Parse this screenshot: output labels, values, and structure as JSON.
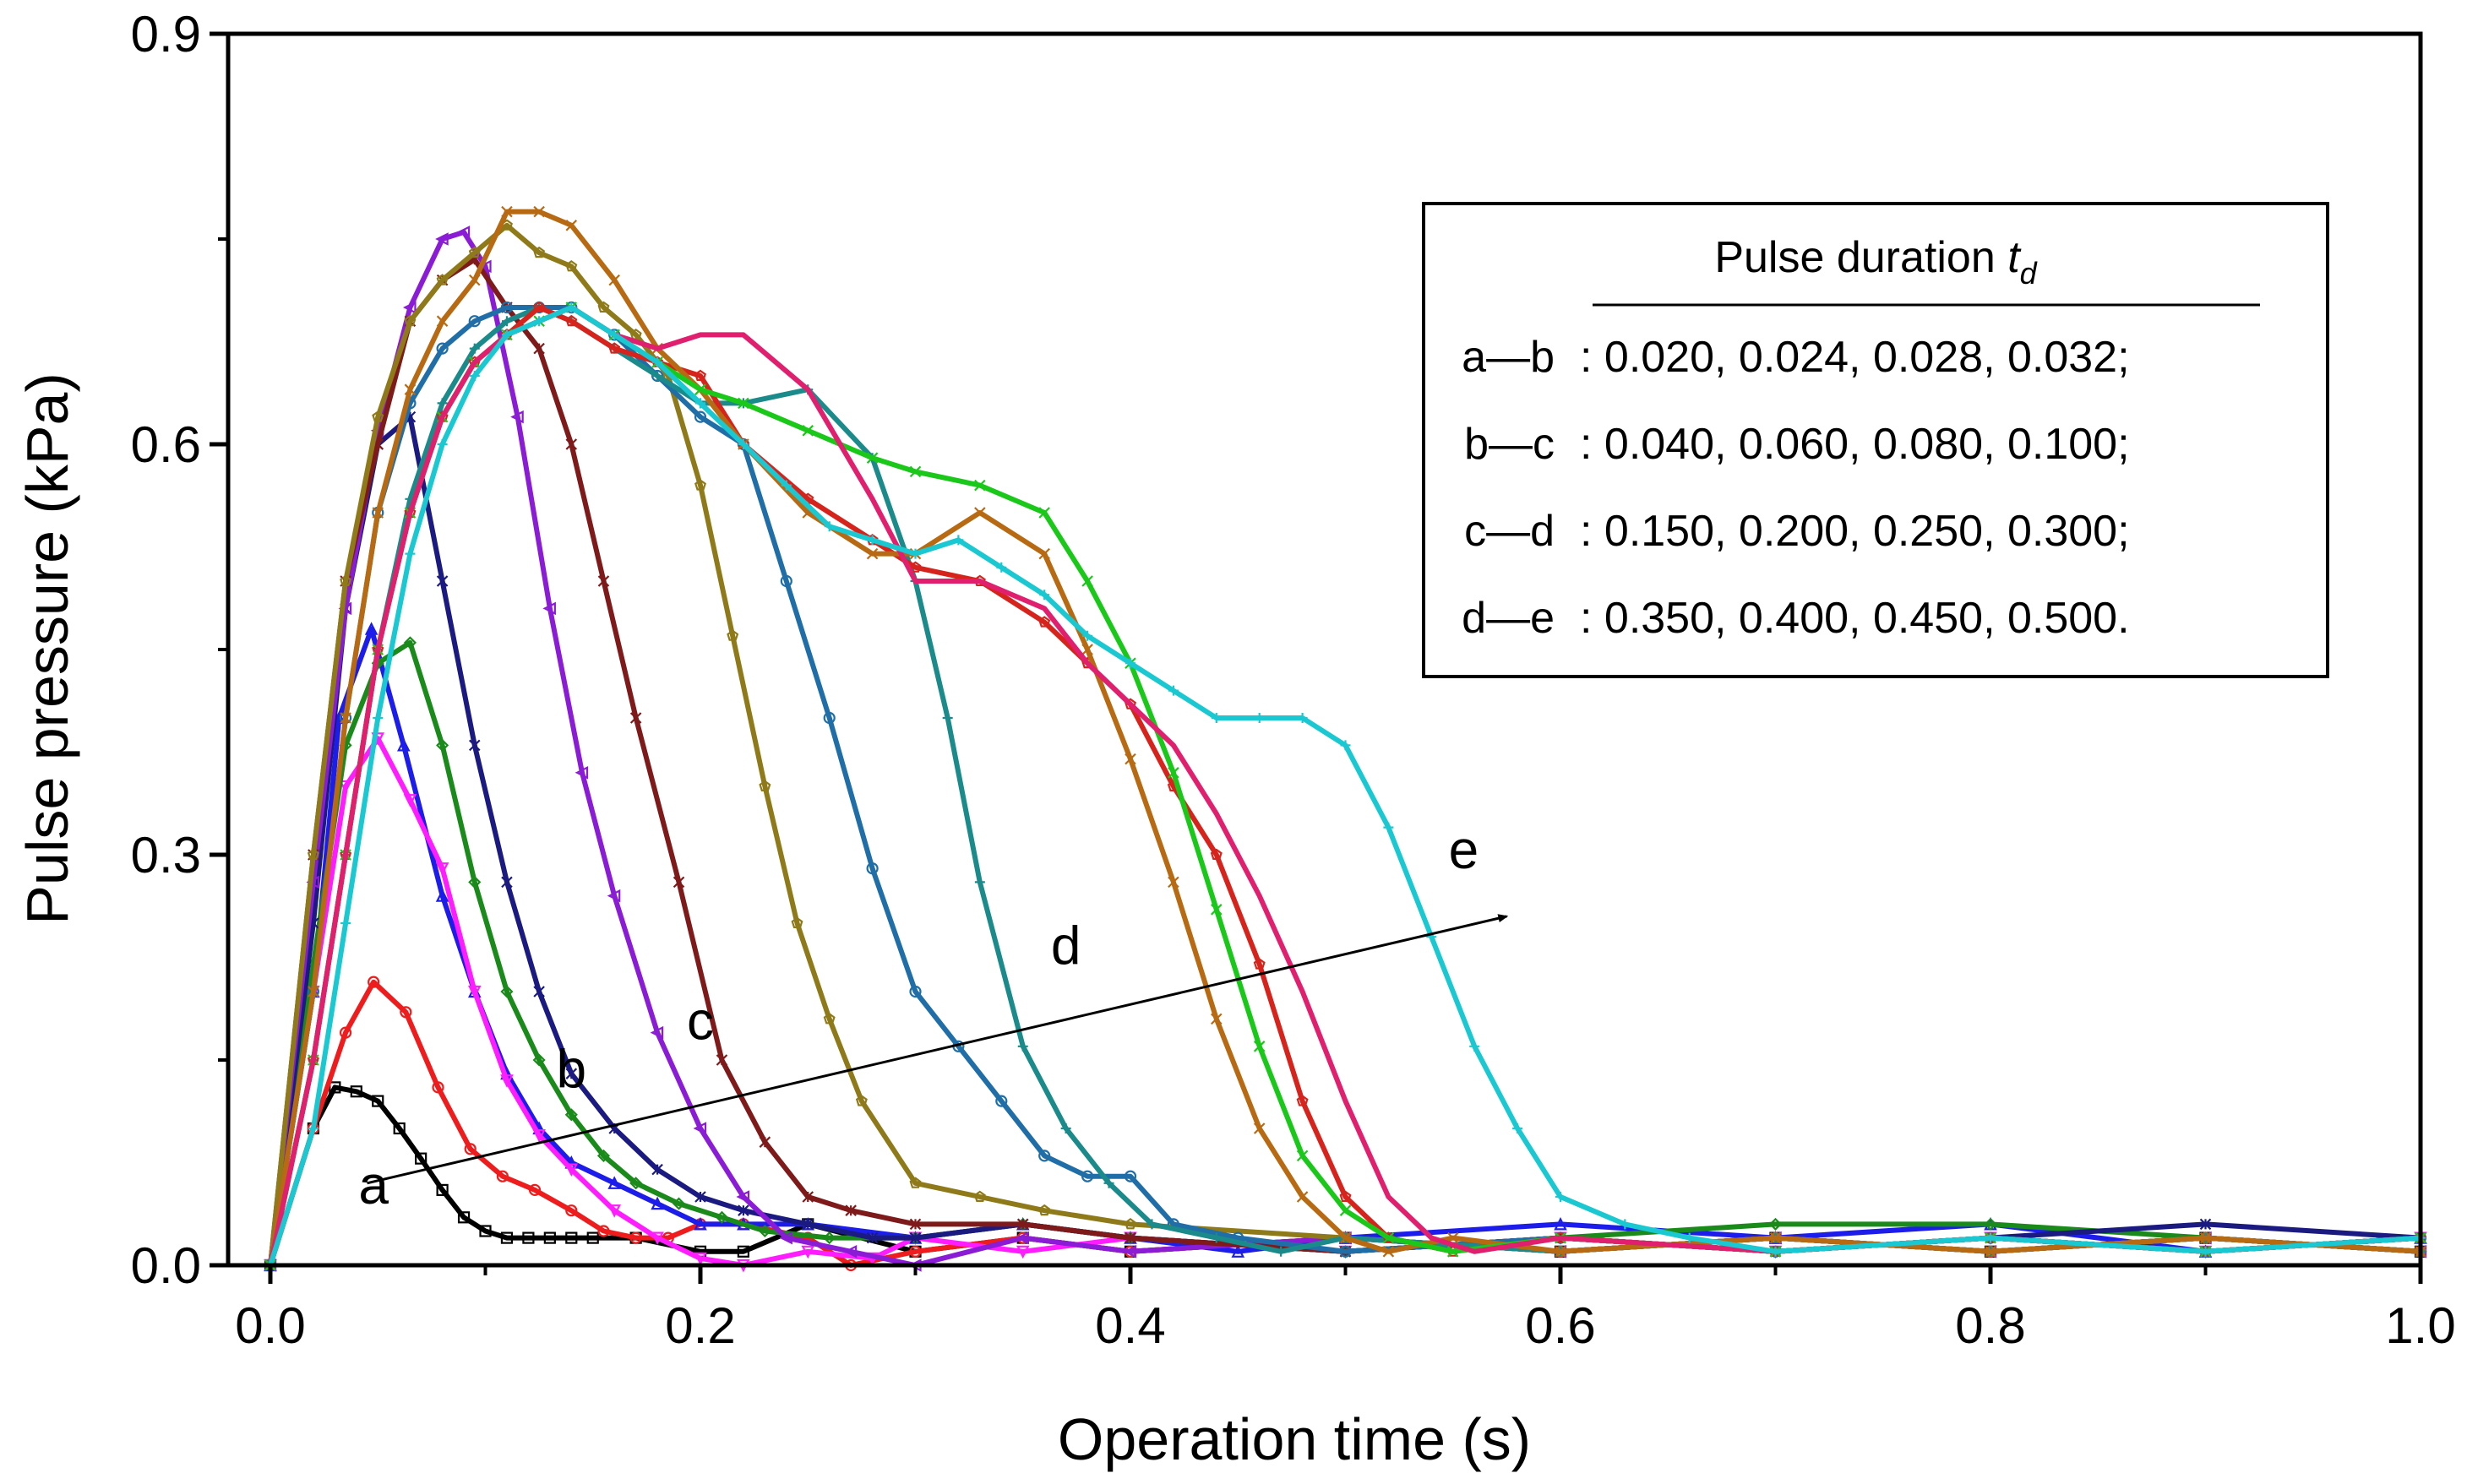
{
  "chart_data": {
    "type": "line",
    "title": "",
    "xlabel": "Operation time (s)",
    "ylabel": "Pulse pressure (kPa)",
    "xlim": [
      0.0,
      1.0
    ],
    "ylim": [
      0.0,
      0.9
    ],
    "x_ticks": [
      "0.0",
      "0.2",
      "0.4",
      "0.6",
      "0.8",
      "1.0"
    ],
    "y_ticks": [
      "0.0",
      "0.3",
      "0.6",
      "0.9"
    ],
    "grid": false,
    "legend": {
      "position": "top-right",
      "title": "Pulse duration ",
      "title_symbol": "t",
      "title_subscript": "d",
      "rows": [
        {
          "range": "a—b",
          "values": ": 0.020, 0.024, 0.028, 0.032;"
        },
        {
          "range": "b—c",
          "values": ": 0.040, 0.060, 0.080, 0.100;"
        },
        {
          "range": "c—d",
          "values": ": 0.150, 0.200, 0.250, 0.300;"
        },
        {
          "range": "d—e",
          "values": ": 0.350, 0.400, 0.450, 0.500."
        }
      ]
    },
    "annotations": [
      {
        "text": "a",
        "x": 0.048,
        "y": 0.045
      },
      {
        "text": "b",
        "x": 0.14,
        "y": 0.13
      },
      {
        "text": "c",
        "x": 0.2,
        "y": 0.165
      },
      {
        "text": "d",
        "x": 0.37,
        "y": 0.22
      },
      {
        "text": "e",
        "x": 0.555,
        "y": 0.29
      }
    ],
    "arrow": {
      "from": [
        0.045,
        0.06
      ],
      "to": [
        0.575,
        0.255
      ]
    },
    "series": [
      {
        "name": "td=0.020",
        "color": "#000000",
        "marker": "square",
        "x": [
          0,
          0.02,
          0.03,
          0.04,
          0.05,
          0.06,
          0.07,
          0.08,
          0.09,
          0.1,
          0.11,
          0.12,
          0.13,
          0.14,
          0.15,
          0.17,
          0.2,
          0.22,
          0.25,
          0.3,
          0.35,
          0.4,
          0.5,
          0.6,
          0.7,
          0.8,
          0.9,
          1.0
        ],
        "y": [
          0,
          0.1,
          0.13,
          0.127,
          0.12,
          0.1,
          0.078,
          0.055,
          0.035,
          0.025,
          0.02,
          0.02,
          0.02,
          0.02,
          0.02,
          0.02,
          0.01,
          0.01,
          0.03,
          0.01,
          0.02,
          0.01,
          0.02,
          0.01,
          0.02,
          0.01,
          0.02,
          0.01
        ]
      },
      {
        "name": "td=0.024",
        "color": "#ee1c1c",
        "marker": "circle",
        "x": [
          0,
          0.02,
          0.035,
          0.048,
          0.063,
          0.078,
          0.093,
          0.108,
          0.123,
          0.14,
          0.155,
          0.17,
          0.185,
          0.2,
          0.22,
          0.25,
          0.27,
          0.3,
          0.35,
          0.4,
          0.5,
          0.6,
          0.7,
          0.8,
          0.9,
          1.0
        ],
        "y": [
          0,
          0.1,
          0.17,
          0.207,
          0.185,
          0.13,
          0.085,
          0.065,
          0.055,
          0.04,
          0.025,
          0.02,
          0.02,
          0.03,
          0.03,
          0.02,
          0,
          0.01,
          0.02,
          0.01,
          0.02,
          0.01,
          0.02,
          0.01,
          0.02,
          0.01
        ]
      },
      {
        "name": "td=0.028",
        "color": "#1c1ceb",
        "marker": "triangle",
        "x": [
          0,
          0.02,
          0.032,
          0.047,
          0.062,
          0.08,
          0.095,
          0.11,
          0.125,
          0.14,
          0.16,
          0.18,
          0.2,
          0.22,
          0.25,
          0.3,
          0.35,
          0.4,
          0.45,
          0.5,
          0.6,
          0.7,
          0.8,
          0.9,
          1.0
        ],
        "y": [
          0,
          0.2,
          0.4,
          0.465,
          0.38,
          0.27,
          0.2,
          0.14,
          0.1,
          0.075,
          0.06,
          0.045,
          0.03,
          0.03,
          0.03,
          0.02,
          0.03,
          0.02,
          0.01,
          0.02,
          0.03,
          0.02,
          0.03,
          0.01,
          0.02
        ]
      },
      {
        "name": "td=0.032",
        "color": "#ff1cff",
        "marker": "tri-down",
        "x": [
          0,
          0.02,
          0.035,
          0.05,
          0.065,
          0.08,
          0.095,
          0.11,
          0.125,
          0.14,
          0.16,
          0.18,
          0.2,
          0.22,
          0.25,
          0.28,
          0.3,
          0.35,
          0.4,
          0.5,
          0.6,
          0.7,
          0.8,
          0.9,
          1.0
        ],
        "y": [
          0,
          0.2,
          0.35,
          0.385,
          0.34,
          0.29,
          0.2,
          0.135,
          0.095,
          0.07,
          0.04,
          0.02,
          0.005,
          0,
          0.01,
          0.005,
          0.02,
          0.01,
          0.02,
          0.01,
          0.02,
          0.01,
          0.02,
          0.01,
          0.02
        ]
      },
      {
        "name": "td=0.040",
        "color": "#1a8a1a",
        "marker": "diamond",
        "x": [
          0,
          0.02,
          0.035,
          0.05,
          0.065,
          0.08,
          0.095,
          0.11,
          0.125,
          0.14,
          0.155,
          0.17,
          0.19,
          0.21,
          0.23,
          0.26,
          0.3,
          0.35,
          0.4,
          0.5,
          0.6,
          0.7,
          0.8,
          0.9,
          1.0
        ],
        "y": [
          0,
          0.22,
          0.38,
          0.44,
          0.455,
          0.38,
          0.28,
          0.2,
          0.15,
          0.11,
          0.08,
          0.06,
          0.045,
          0.035,
          0.025,
          0.02,
          0.02,
          0.03,
          0.02,
          0.01,
          0.02,
          0.03,
          0.03,
          0.02,
          0.01
        ]
      },
      {
        "name": "td=0.060",
        "color": "#1a1a80",
        "marker": "star",
        "x": [
          0,
          0.02,
          0.035,
          0.05,
          0.065,
          0.08,
          0.095,
          0.11,
          0.125,
          0.14,
          0.16,
          0.18,
          0.2,
          0.22,
          0.25,
          0.28,
          0.3,
          0.35,
          0.4,
          0.5,
          0.6,
          0.7,
          0.8,
          0.9,
          1.0
        ],
        "y": [
          0,
          0.25,
          0.48,
          0.6,
          0.62,
          0.5,
          0.38,
          0.28,
          0.2,
          0.14,
          0.1,
          0.07,
          0.05,
          0.04,
          0.03,
          0.02,
          0.02,
          0.03,
          0.02,
          0.01,
          0.02,
          0.01,
          0.02,
          0.03,
          0.02
        ]
      },
      {
        "name": "td=0.080",
        "color": "#8a1cd6",
        "marker": "tri-left",
        "x": [
          0,
          0.02,
          0.035,
          0.05,
          0.065,
          0.08,
          0.09,
          0.1,
          0.115,
          0.13,
          0.145,
          0.16,
          0.18,
          0.2,
          0.22,
          0.24,
          0.27,
          0.3,
          0.35,
          0.4,
          0.5,
          0.6,
          0.7,
          0.8,
          0.9,
          1.0
        ],
        "y": [
          0,
          0.28,
          0.48,
          0.61,
          0.7,
          0.75,
          0.755,
          0.73,
          0.62,
          0.48,
          0.36,
          0.27,
          0.17,
          0.1,
          0.05,
          0.02,
          0.01,
          0,
          0.02,
          0.01,
          0.02,
          0.01,
          0.02,
          0.01,
          0.02,
          0.01
        ]
      },
      {
        "name": "td=0.100",
        "color": "#7f1a1a",
        "marker": "star",
        "x": [
          0,
          0.02,
          0.035,
          0.05,
          0.065,
          0.08,
          0.095,
          0.11,
          0.125,
          0.14,
          0.155,
          0.17,
          0.19,
          0.21,
          0.23,
          0.25,
          0.27,
          0.3,
          0.35,
          0.4,
          0.5,
          0.6,
          0.7,
          0.8,
          0.9,
          1.0
        ],
        "y": [
          0,
          0.3,
          0.5,
          0.6,
          0.69,
          0.72,
          0.735,
          0.7,
          0.67,
          0.6,
          0.5,
          0.4,
          0.28,
          0.15,
          0.09,
          0.05,
          0.04,
          0.03,
          0.03,
          0.02,
          0.01,
          0.02,
          0.01,
          0.02,
          0.01,
          0.02
        ]
      },
      {
        "name": "td=0.150",
        "color": "#8f7a1a",
        "marker": "pentagon",
        "x": [
          0,
          0.02,
          0.035,
          0.05,
          0.065,
          0.08,
          0.095,
          0.11,
          0.125,
          0.14,
          0.155,
          0.17,
          0.185,
          0.2,
          0.215,
          0.23,
          0.245,
          0.26,
          0.275,
          0.3,
          0.33,
          0.36,
          0.4,
          0.5,
          0.6,
          0.7,
          0.8,
          0.9,
          1.0
        ],
        "y": [
          0,
          0.3,
          0.5,
          0.62,
          0.69,
          0.72,
          0.74,
          0.76,
          0.74,
          0.73,
          0.7,
          0.68,
          0.65,
          0.57,
          0.46,
          0.35,
          0.25,
          0.18,
          0.12,
          0.06,
          0.05,
          0.04,
          0.03,
          0.02,
          0.01,
          0.02,
          0.01,
          0.02,
          0.01
        ]
      },
      {
        "name": "td=0.200",
        "color": "#1f6ea8",
        "marker": "circle",
        "x": [
          0,
          0.02,
          0.035,
          0.05,
          0.065,
          0.08,
          0.095,
          0.11,
          0.125,
          0.14,
          0.16,
          0.18,
          0.2,
          0.22,
          0.24,
          0.26,
          0.28,
          0.3,
          0.32,
          0.34,
          0.36,
          0.38,
          0.4,
          0.42,
          0.45,
          0.5,
          0.6,
          0.7,
          0.8,
          0.9,
          1.0
        ],
        "y": [
          0,
          0.2,
          0.4,
          0.55,
          0.63,
          0.67,
          0.69,
          0.7,
          0.7,
          0.7,
          0.68,
          0.65,
          0.62,
          0.6,
          0.5,
          0.4,
          0.29,
          0.2,
          0.16,
          0.12,
          0.08,
          0.065,
          0.065,
          0.03,
          0.02,
          0.01,
          0.02,
          0.01,
          0.02,
          0.01,
          0.02
        ]
      },
      {
        "name": "td=0.250",
        "color": "#1a8a8a",
        "marker": "plus",
        "x": [
          0,
          0.02,
          0.035,
          0.05,
          0.065,
          0.08,
          0.095,
          0.11,
          0.125,
          0.14,
          0.16,
          0.18,
          0.2,
          0.22,
          0.25,
          0.28,
          0.3,
          0.315,
          0.33,
          0.35,
          0.37,
          0.39,
          0.41,
          0.44,
          0.47,
          0.5,
          0.6,
          0.7,
          0.8,
          0.9,
          1.0
        ],
        "y": [
          0,
          0.15,
          0.3,
          0.45,
          0.56,
          0.63,
          0.67,
          0.69,
          0.7,
          0.69,
          0.67,
          0.65,
          0.63,
          0.63,
          0.64,
          0.59,
          0.5,
          0.4,
          0.28,
          0.16,
          0.1,
          0.06,
          0.03,
          0.02,
          0.01,
          0.02,
          0.01,
          0.02,
          0.01,
          0.02,
          0.01
        ]
      },
      {
        "name": "td=0.300",
        "color": "#d6241c",
        "marker": "pentagon",
        "x": [
          0,
          0.02,
          0.035,
          0.05,
          0.065,
          0.08,
          0.095,
          0.11,
          0.125,
          0.14,
          0.16,
          0.18,
          0.2,
          0.22,
          0.25,
          0.28,
          0.3,
          0.33,
          0.36,
          0.38,
          0.4,
          0.42,
          0.44,
          0.46,
          0.48,
          0.5,
          0.52,
          0.55,
          0.6,
          0.7,
          0.8,
          0.9,
          1.0
        ],
        "y": [
          0,
          0.15,
          0.3,
          0.45,
          0.55,
          0.62,
          0.66,
          0.68,
          0.7,
          0.69,
          0.67,
          0.66,
          0.65,
          0.6,
          0.56,
          0.53,
          0.51,
          0.5,
          0.47,
          0.44,
          0.41,
          0.35,
          0.3,
          0.22,
          0.12,
          0.05,
          0.02,
          0.01,
          0.02,
          0.01,
          0.02,
          0.01,
          0.02
        ]
      },
      {
        "name": "td=0.350",
        "color": "#b86a12",
        "marker": "x",
        "x": [
          0,
          0.02,
          0.035,
          0.05,
          0.065,
          0.08,
          0.095,
          0.11,
          0.125,
          0.14,
          0.16,
          0.18,
          0.2,
          0.22,
          0.25,
          0.28,
          0.3,
          0.33,
          0.36,
          0.38,
          0.4,
          0.42,
          0.44,
          0.46,
          0.48,
          0.5,
          0.52,
          0.55,
          0.6,
          0.7,
          0.8,
          0.9,
          1.0
        ],
        "y": [
          0,
          0.2,
          0.4,
          0.55,
          0.64,
          0.69,
          0.72,
          0.77,
          0.77,
          0.76,
          0.72,
          0.67,
          0.64,
          0.6,
          0.55,
          0.52,
          0.52,
          0.55,
          0.52,
          0.45,
          0.37,
          0.28,
          0.18,
          0.1,
          0.05,
          0.02,
          0.01,
          0.02,
          0.01,
          0.02,
          0.01,
          0.02,
          0.01
        ]
      },
      {
        "name": "td=0.400",
        "color": "#1ac81a",
        "marker": "x",
        "x": [
          0,
          0.02,
          0.035,
          0.05,
          0.065,
          0.08,
          0.095,
          0.11,
          0.125,
          0.14,
          0.16,
          0.18,
          0.2,
          0.22,
          0.25,
          0.28,
          0.3,
          0.33,
          0.36,
          0.38,
          0.4,
          0.42,
          0.44,
          0.46,
          0.48,
          0.5,
          0.52,
          0.55,
          0.6,
          0.7,
          0.8,
          0.9,
          1.0
        ],
        "y": [
          0,
          0.15,
          0.3,
          0.45,
          0.55,
          0.62,
          0.66,
          0.68,
          0.69,
          0.7,
          0.68,
          0.66,
          0.64,
          0.63,
          0.61,
          0.59,
          0.58,
          0.57,
          0.55,
          0.5,
          0.44,
          0.36,
          0.26,
          0.16,
          0.08,
          0.04,
          0.02,
          0.01,
          0.02,
          0.01,
          0.02,
          0.01,
          0.02
        ]
      },
      {
        "name": "td=0.450",
        "color": "#e0206e",
        "marker": "none",
        "x": [
          0,
          0.02,
          0.035,
          0.05,
          0.065,
          0.08,
          0.095,
          0.11,
          0.125,
          0.14,
          0.16,
          0.18,
          0.2,
          0.22,
          0.25,
          0.28,
          0.3,
          0.33,
          0.36,
          0.38,
          0.4,
          0.42,
          0.44,
          0.46,
          0.48,
          0.5,
          0.52,
          0.54,
          0.56,
          0.6,
          0.7,
          0.8,
          0.9,
          1.0
        ],
        "y": [
          0,
          0.15,
          0.3,
          0.45,
          0.55,
          0.62,
          0.66,
          0.68,
          0.69,
          0.7,
          0.68,
          0.67,
          0.68,
          0.68,
          0.64,
          0.56,
          0.5,
          0.5,
          0.48,
          0.44,
          0.41,
          0.38,
          0.33,
          0.27,
          0.2,
          0.12,
          0.05,
          0.02,
          0.01,
          0.02,
          0.01,
          0.02,
          0.01,
          0.02
        ]
      },
      {
        "name": "td=0.500",
        "color": "#1ac8d2",
        "marker": "plus",
        "x": [
          0,
          0.02,
          0.035,
          0.05,
          0.065,
          0.08,
          0.095,
          0.11,
          0.125,
          0.14,
          0.16,
          0.18,
          0.2,
          0.22,
          0.24,
          0.26,
          0.28,
          0.3,
          0.32,
          0.34,
          0.36,
          0.38,
          0.4,
          0.42,
          0.44,
          0.46,
          0.48,
          0.5,
          0.52,
          0.54,
          0.56,
          0.58,
          0.6,
          0.63,
          0.66,
          0.7,
          0.8,
          0.9,
          1.0
        ],
        "y": [
          0,
          0.1,
          0.25,
          0.4,
          0.52,
          0.6,
          0.65,
          0.68,
          0.69,
          0.7,
          0.68,
          0.66,
          0.63,
          0.6,
          0.57,
          0.54,
          0.53,
          0.52,
          0.53,
          0.51,
          0.49,
          0.46,
          0.44,
          0.42,
          0.4,
          0.4,
          0.4,
          0.38,
          0.32,
          0.24,
          0.16,
          0.1,
          0.05,
          0.03,
          0.02,
          0.01,
          0.02,
          0.01,
          0.02
        ]
      }
    ]
  }
}
